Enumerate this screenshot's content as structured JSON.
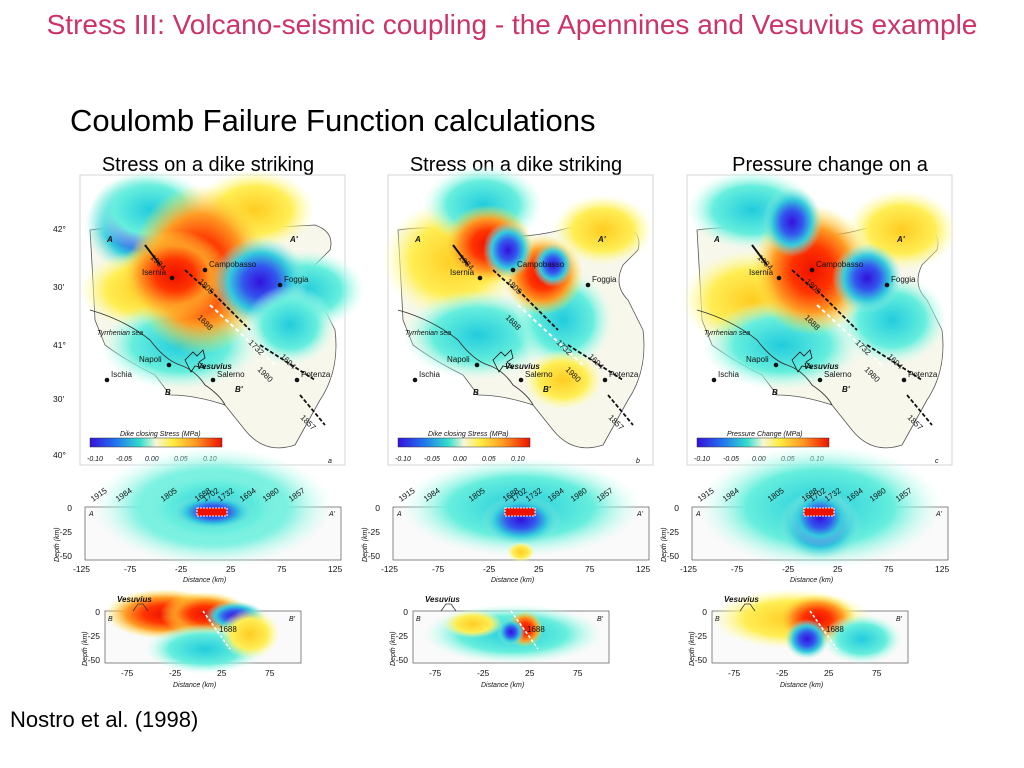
{
  "title": "Stress III: Volcano-seismic coupling - the Apennines and Vesuvius example",
  "subtitle": "Coulomb Failure Function calculations",
  "citation": "Nostro et al. (1998)",
  "colors": {
    "title": "#cc3366",
    "red": "#ee1100",
    "blue": "#3311dd",
    "cyan": "#33ddcc",
    "yellow": "#ffee44"
  },
  "columns": [
    {
      "caption": "Stress on a dike striking parallel to the Apennines",
      "panel_letter": "a",
      "scale_label": "Dike closing Stress (MPa)",
      "scale_ticks": [
        "-0.10",
        "-0.05",
        "0.00",
        "0.05",
        "0.10"
      ]
    },
    {
      "caption": "Stress on a dike striking Perpendicular to the Apennines",
      "panel_letter": "b",
      "scale_label": "Dike closing Stress (MPa)",
      "scale_ticks": [
        "-0.10",
        "-0.05",
        "0.00",
        "0.05",
        "0.10"
      ]
    },
    {
      "caption": "Pressure change on a spherical magma chamber",
      "panel_letter": "c",
      "scale_label": "Pressure Change (MPa)",
      "scale_ticks": [
        "-0.10",
        "-0.05",
        "0.00",
        "0.05",
        "0.10"
      ]
    }
  ],
  "map": {
    "lat_labels": [
      "42°",
      "30'",
      "41°",
      "30'",
      "40°"
    ],
    "cities": [
      "Campobasso",
      "Isernia",
      "Foggia",
      "Napoli",
      "Ischia",
      "Salerno",
      "Potenza"
    ],
    "sea_label": "Tyrrhenian sea",
    "volcano": "Vesuvius",
    "event_years": [
      "1984",
      "1805",
      "1688",
      "1732",
      "1694",
      "1980",
      "1857"
    ],
    "section_marks": [
      "A",
      "A'",
      "B",
      "B'"
    ]
  },
  "profile_aa": {
    "years": [
      "1915",
      "1984",
      "1805",
      "1688",
      "1702",
      "1732",
      "1694",
      "1980",
      "1857"
    ],
    "ylabel": "Depth (km)",
    "xlabel": "Distance (km)",
    "yticks": [
      "0",
      "-25",
      "-50"
    ],
    "xticks": [
      "-125",
      "-75",
      "-25",
      "25",
      "75",
      "125"
    ],
    "end_labels": [
      "A",
      "A'"
    ]
  },
  "profile_bb": {
    "volcano": "Vesuvius",
    "event": "1688",
    "ylabel": "Depth (km)",
    "xlabel": "Distance (km)",
    "yticks": [
      "0",
      "-25",
      "-50"
    ],
    "xticks": [
      "-75",
      "-25",
      "25",
      "75"
    ],
    "end_labels": [
      "B",
      "B'"
    ]
  }
}
